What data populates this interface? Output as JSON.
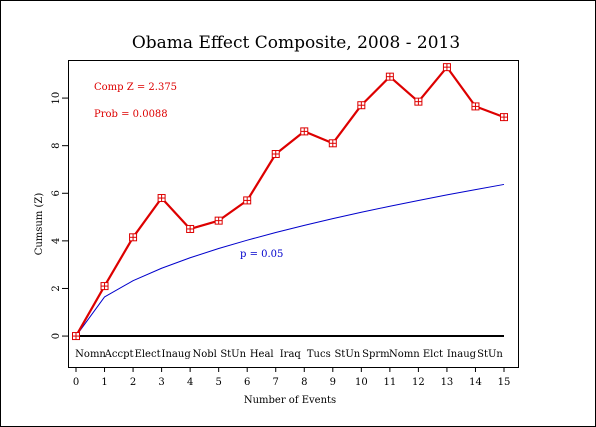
{
  "chart_data": {
    "type": "line",
    "title": "Obama Effect Composite, 2008 - 2013",
    "xlabel": "Number of Events",
    "ylabel": "Cumsum (Z)",
    "xlim": [
      0,
      15
    ],
    "ylim": [
      -1.3,
      11.6
    ],
    "x_ticks": [
      0,
      1,
      2,
      3,
      4,
      5,
      6,
      7,
      8,
      9,
      10,
      11,
      12,
      13,
      14,
      15
    ],
    "y_ticks": [
      0,
      2,
      4,
      6,
      8,
      10
    ],
    "grid": false,
    "event_labels": [
      "Nomn",
      "Accpt",
      "Elect",
      "Inaug",
      "Nobl",
      "StUn",
      "Heal",
      "Iraq",
      "Tucs",
      "StUn",
      "Sprm",
      "Nomn",
      "Elct",
      "Inaug",
      "StUn"
    ],
    "series": [
      {
        "name": "",
        "color": "#dd0000",
        "markers": "boxed-plus",
        "x": [
          0,
          1,
          2,
          3,
          4,
          5,
          6,
          7,
          8,
          9,
          10,
          11,
          12,
          13,
          14,
          15
        ],
        "values": [
          0,
          2.1,
          4.15,
          5.8,
          4.5,
          4.85,
          5.7,
          7.65,
          8.6,
          8.1,
          9.7,
          10.9,
          9.85,
          11.3,
          9.65,
          9.2
        ]
      },
      {
        "name": "p = 0.05",
        "color": "#0000cc",
        "markers": "none",
        "x": [
          0,
          1,
          2,
          3,
          4,
          5,
          6,
          7,
          8,
          9,
          10,
          11,
          12,
          13,
          14,
          15
        ],
        "values": [
          0,
          1.645,
          2.326,
          2.849,
          3.29,
          3.678,
          4.029,
          4.352,
          4.653,
          4.935,
          5.202,
          5.456,
          5.698,
          5.931,
          6.155,
          6.371
        ]
      }
    ],
    "annotations": [
      "Comp Z = 2.375",
      "Prob = 0.0088",
      "p = 0.05"
    ]
  }
}
